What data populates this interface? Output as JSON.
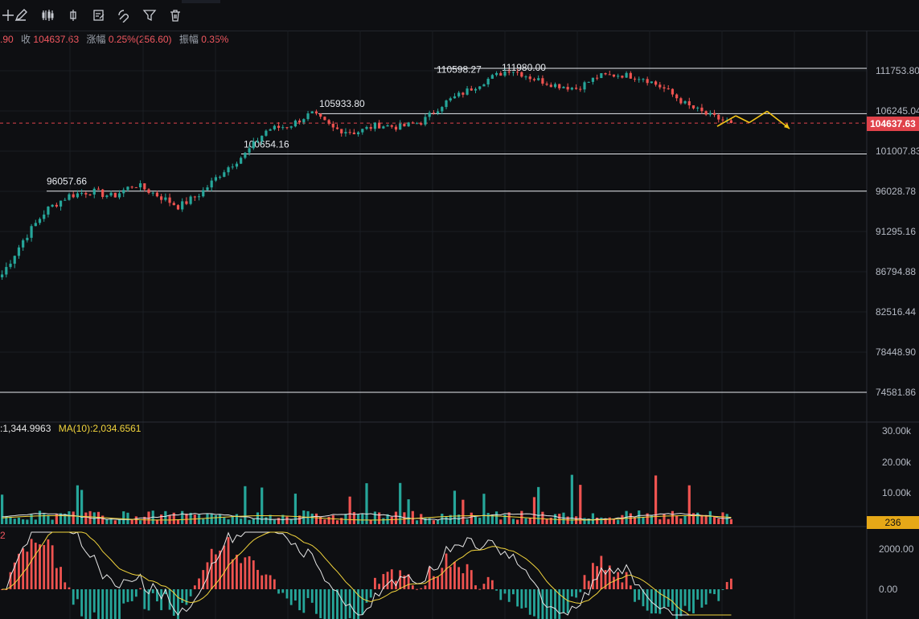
{
  "toolbar": {
    "tools": [
      {
        "name": "crosshair-tool",
        "icon": "crosshair-icon"
      },
      {
        "name": "draw-line-tool",
        "icon": "pencil-icon"
      },
      {
        "name": "indicators-tool",
        "icon": "candles-icon"
      },
      {
        "name": "single-candle-tool",
        "icon": "candle-icon"
      },
      {
        "name": "notes-tool",
        "icon": "notepad-icon"
      },
      {
        "name": "magnet-tool",
        "icon": "magnet-icon"
      },
      {
        "name": "filter-tool",
        "icon": "filter-icon"
      },
      {
        "name": "delete-tool",
        "icon": "trash-icon"
      }
    ]
  },
  "ohlc": {
    "prev_fragment": ".90",
    "close_label": "收",
    "close_value": "104637.63",
    "change_label": "涨幅",
    "change_value": "0.25%(256.60)",
    "amplitude_label": "振幅",
    "amplitude_value": "0.35%"
  },
  "price_axis": [
    "111753.80",
    "106245.04",
    "101007.83",
    "96028.78",
    "91295.16",
    "86794.88",
    "82516.44",
    "78448.90",
    "74581.86"
  ],
  "current_price": "104637.63",
  "levels": [
    {
      "label": "96057.66",
      "price": 96057.66
    },
    {
      "label": "100654.16",
      "price": 100654.16
    },
    {
      "label": "105933.80",
      "price": 105933.8
    },
    {
      "label": "110598.27",
      "price": 110598.27
    },
    {
      "label": "111980.00",
      "price": 111980.0
    }
  ],
  "horizontal_lines": [
    112100,
    105880,
    100654.16,
    96057.66,
    74581.86
  ],
  "volume_legend": {
    "ma5": ":1,344.9963",
    "ma10": "MA(10):2,034.6561"
  },
  "volume_axis": [
    "30.00k",
    "20.00k",
    "10.00k"
  ],
  "volume_current": "236",
  "macd_legend": "2",
  "macd_axis": [
    "2000.00",
    "0.00"
  ],
  "colors": {
    "up": "#26a69a",
    "down": "#ef5350",
    "ma_white": "#e6e6e6",
    "ma_yellow": "#f2d43c",
    "projection": "#f5c518"
  },
  "chart_data": {
    "type": "candlestick",
    "key_prices": [
      86500,
      90500,
      93800,
      95500,
      96060,
      95400,
      96900,
      95600,
      94200,
      95800,
      98500,
      100650,
      103800,
      104300,
      105930,
      103900,
      103400,
      104400,
      104100,
      104800,
      107300,
      108900,
      110600,
      111980,
      110700,
      109800,
      109300,
      111000,
      111200,
      110800,
      109200,
      107000,
      105600,
      104637.63
    ],
    "projection": [
      104200,
      105600,
      104700,
      106200,
      103900
    ]
  }
}
